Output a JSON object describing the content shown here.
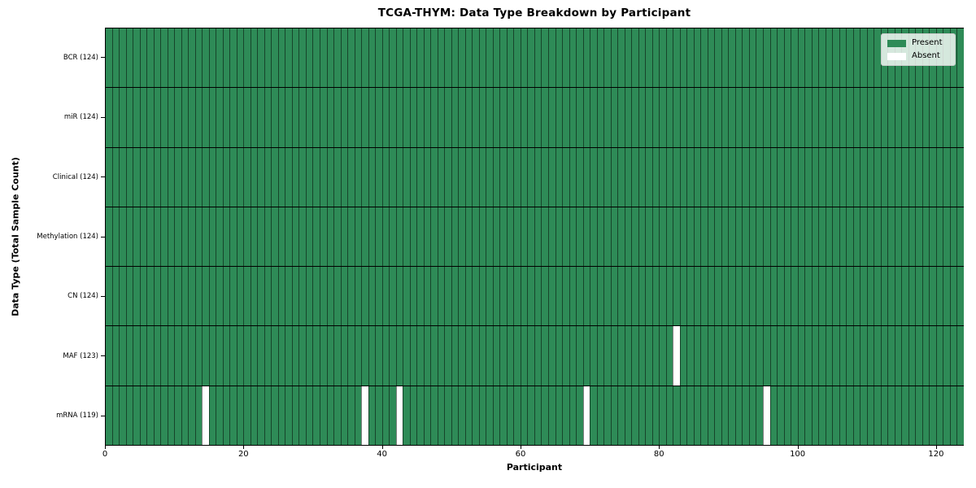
{
  "chart_data": {
    "type": "heatmap",
    "title": "TCGA-THYM: Data Type Breakdown by Participant",
    "xlabel": "Participant",
    "ylabel": "Data Type (Total Sample Count)",
    "n_participants": 124,
    "x_ticks": [
      0,
      20,
      40,
      60,
      80,
      100,
      120
    ],
    "colors": {
      "present": "#2e8b57",
      "absent": "#ffffff",
      "cell_edge": "rgba(0,0,0,0.5)",
      "row_divider": "#000000"
    },
    "legend": [
      {
        "label": "Present",
        "color": "#2e8b57"
      },
      {
        "label": "Absent",
        "color": "#ffffff"
      }
    ],
    "rows": [
      {
        "label": "BCR (124)",
        "data_type": "BCR",
        "total": 124,
        "absent_participants": []
      },
      {
        "label": "miR (124)",
        "data_type": "miR",
        "total": 124,
        "absent_participants": []
      },
      {
        "label": "Clinical (124)",
        "data_type": "Clinical",
        "total": 124,
        "absent_participants": []
      },
      {
        "label": "Methylation (124)",
        "data_type": "Methylation",
        "total": 124,
        "absent_participants": []
      },
      {
        "label": "CN (124)",
        "data_type": "CN",
        "total": 124,
        "absent_participants": []
      },
      {
        "label": "MAF (123)",
        "data_type": "MAF",
        "total": 123,
        "absent_participants": [
          82
        ]
      },
      {
        "label": "mRNA (119)",
        "data_type": "mRNA",
        "total": 119,
        "absent_participants": [
          14,
          37,
          42,
          69,
          95
        ]
      }
    ]
  }
}
